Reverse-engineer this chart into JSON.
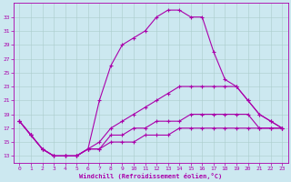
{
  "xlabel": "Windchill (Refroidissement éolien,°C)",
  "background_color": "#cce8f0",
  "line_color": "#aa00aa",
  "grid_color": "#aacccc",
  "hours": [
    0,
    1,
    2,
    3,
    4,
    5,
    6,
    7,
    8,
    9,
    10,
    11,
    12,
    13,
    14,
    15,
    16,
    17,
    18,
    19,
    20,
    21,
    22,
    23
  ],
  "series": [
    [
      18,
      16,
      14,
      13,
      13,
      13,
      14,
      21,
      26,
      29,
      30,
      31,
      33,
      34,
      34,
      33,
      33,
      28,
      24,
      23,
      21,
      19,
      18,
      17
    ],
    [
      18,
      16,
      14,
      13,
      13,
      13,
      14,
      15,
      17,
      18,
      19,
      20,
      21,
      22,
      23,
      23,
      23,
      23,
      23,
      23,
      21,
      19,
      18,
      17
    ],
    [
      18,
      16,
      14,
      13,
      13,
      13,
      14,
      14,
      16,
      16,
      17,
      17,
      18,
      18,
      18,
      19,
      19,
      19,
      19,
      19,
      19,
      17,
      17,
      17
    ],
    [
      18,
      16,
      14,
      13,
      13,
      13,
      14,
      14,
      15,
      15,
      15,
      16,
      16,
      16,
      17,
      17,
      17,
      17,
      17,
      17,
      17,
      17,
      17,
      17
    ]
  ],
  "ylim": [
    12,
    35
  ],
  "yticks": [
    13,
    15,
    17,
    19,
    21,
    23,
    25,
    27,
    29,
    31,
    33
  ],
  "xlim": [
    -0.5,
    23.5
  ],
  "xticks": [
    0,
    1,
    2,
    3,
    4,
    5,
    6,
    7,
    8,
    9,
    10,
    11,
    12,
    13,
    14,
    15,
    16,
    17,
    18,
    19,
    20,
    21,
    22,
    23
  ]
}
